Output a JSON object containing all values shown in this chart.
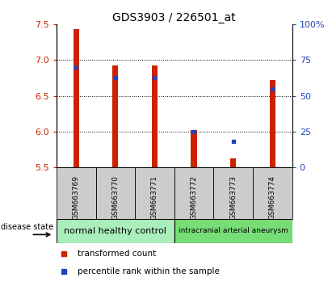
{
  "title": "GDS3903 / 226501_at",
  "samples": [
    "GSM663769",
    "GSM663770",
    "GSM663771",
    "GSM663772",
    "GSM663773",
    "GSM663774"
  ],
  "transformed_counts": [
    7.43,
    6.92,
    6.92,
    6.02,
    5.62,
    6.72
  ],
  "percentile_ranks": [
    70,
    63,
    63,
    25,
    18,
    55
  ],
  "ylim": [
    5.5,
    7.5
  ],
  "yticks": [
    5.5,
    6.0,
    6.5,
    7.0,
    7.5
  ],
  "right_yticks": [
    0,
    25,
    50,
    75,
    100
  ],
  "right_ylabels": [
    "0",
    "25",
    "50",
    "75",
    "100%"
  ],
  "bar_color": "#CC2200",
  "dot_color": "#2244BB",
  "group1_color": "#AAEEBB",
  "group2_color": "#77DD77",
  "group1_label": "normal healthy control",
  "group2_label": "intracranial arterial aneurysm",
  "disease_state_label": "disease state",
  "legend_red_label": "transformed count",
  "legend_blue_label": "percentile rank within the sample",
  "background_color": "#FFFFFF",
  "tick_label_color_left": "#CC2200",
  "tick_label_color_right": "#2244BB",
  "bar_width": 0.15,
  "base_value": 5.5,
  "gridline_y": [
    6.0,
    6.5,
    7.0
  ],
  "sample_box_color": "#CCCCCC"
}
